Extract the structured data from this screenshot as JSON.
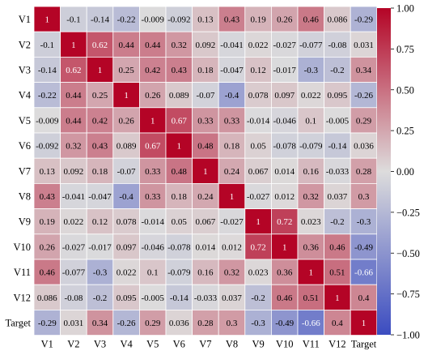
{
  "chart_data": {
    "type": "heatmap",
    "rows": [
      "V1",
      "V2",
      "V3",
      "V4",
      "V5",
      "V6",
      "V7",
      "V8",
      "V9",
      "V10",
      "V11",
      "V12",
      "Target"
    ],
    "cols": [
      "V1",
      "V2",
      "V3",
      "V4",
      "V5",
      "V6",
      "V7",
      "V8",
      "V9",
      "V10",
      "V11",
      "V12",
      "Target"
    ],
    "values": [
      [
        1,
        -0.1,
        -0.14,
        -0.22,
        -0.009,
        -0.092,
        0.13,
        0.43,
        0.19,
        0.26,
        0.46,
        0.086,
        -0.29
      ],
      [
        -0.1,
        1,
        0.62,
        0.44,
        0.44,
        0.32,
        0.092,
        -0.041,
        0.022,
        -0.027,
        -0.077,
        -0.08,
        0.031
      ],
      [
        -0.14,
        0.62,
        1,
        0.25,
        0.42,
        0.43,
        0.18,
        -0.047,
        0.12,
        -0.017,
        -0.3,
        -0.2,
        0.34
      ],
      [
        -0.22,
        0.44,
        0.25,
        1,
        0.26,
        0.089,
        -0.07,
        -0.4,
        0.078,
        0.097,
        0.022,
        0.095,
        -0.26
      ],
      [
        -0.009,
        0.44,
        0.42,
        0.26,
        1,
        0.67,
        0.33,
        0.33,
        -0.014,
        -0.046,
        0.1,
        -0.005,
        0.29
      ],
      [
        -0.092,
        0.32,
        0.43,
        0.089,
        0.67,
        1,
        0.48,
        0.18,
        0.05,
        -0.078,
        -0.079,
        -0.14,
        0.036
      ],
      [
        0.13,
        0.092,
        0.18,
        -0.07,
        0.33,
        0.48,
        1,
        0.24,
        0.067,
        0.014,
        0.16,
        -0.033,
        0.28
      ],
      [
        0.43,
        -0.041,
        -0.047,
        -0.4,
        0.33,
        0.18,
        0.24,
        1,
        -0.027,
        0.012,
        0.32,
        0.037,
        0.3
      ],
      [
        0.19,
        0.022,
        0.12,
        0.078,
        -0.014,
        0.05,
        0.067,
        -0.027,
        1,
        0.72,
        0.023,
        -0.2,
        -0.3
      ],
      [
        0.26,
        -0.027,
        -0.017,
        0.097,
        -0.046,
        -0.078,
        0.014,
        0.012,
        0.72,
        1,
        0.36,
        0.46,
        -0.49
      ],
      [
        0.46,
        -0.077,
        -0.3,
        0.022,
        0.1,
        -0.079,
        0.16,
        0.32,
        0.023,
        0.36,
        1,
        0.51,
        -0.66
      ],
      [
        0.086,
        -0.08,
        -0.2,
        0.095,
        -0.005,
        -0.14,
        -0.033,
        0.037,
        -0.2,
        0.46,
        0.51,
        1,
        0.4
      ],
      [
        -0.29,
        0.031,
        0.34,
        -0.26,
        0.29,
        0.036,
        0.28,
        0.3,
        -0.3,
        -0.49,
        -0.66,
        0.4,
        1
      ]
    ],
    "labels": [
      [
        "1",
        "-0.1",
        "-0.14",
        "-0.22",
        "-0.009",
        "-0.092",
        "0.13",
        "0.43",
        "0.19",
        "0.26",
        "0.46",
        "0.086",
        "-0.29"
      ],
      [
        "-0.1",
        "1",
        "0.62",
        "0.44",
        "0.44",
        "0.32",
        "0.092",
        "-0.041",
        "0.022",
        "-0.027",
        "-0.077",
        "-0.08",
        "0.031"
      ],
      [
        "-0.14",
        "0.62",
        "1",
        "0.25",
        "0.42",
        "0.43",
        "0.18",
        "-0.047",
        "0.12",
        "-0.017",
        "-0.3",
        "-0.2",
        "0.34"
      ],
      [
        "-0.22",
        "0.44",
        "0.25",
        "1",
        "0.26",
        "0.089",
        "-0.07",
        "-0.4",
        "0.078",
        "0.097",
        "0.022",
        "0.095",
        "-0.26"
      ],
      [
        "-0.009",
        "0.44",
        "0.42",
        "0.26",
        "1",
        "0.67",
        "0.33",
        "0.33",
        "-0.014",
        "-0.046",
        "0.1",
        "-0.005",
        "0.29"
      ],
      [
        "-0.092",
        "0.32",
        "0.43",
        "0.089",
        "0.67",
        "1",
        "0.48",
        "0.18",
        "0.05",
        "-0.078",
        "-0.079",
        "-0.14",
        "0.036"
      ],
      [
        "0.13",
        "0.092",
        "0.18",
        "-0.07",
        "0.33",
        "0.48",
        "1",
        "0.24",
        "0.067",
        "0.014",
        "0.16",
        "-0.033",
        "0.28"
      ],
      [
        "0.43",
        "-0.041",
        "-0.047",
        "-0.4",
        "0.33",
        "0.18",
        "0.24",
        "1",
        "-0.027",
        "0.012",
        "0.32",
        "0.037",
        "0.3"
      ],
      [
        "0.19",
        "0.022",
        "0.12",
        "0.078",
        "-0.014",
        "0.05",
        "0.067",
        "-0.027",
        "1",
        "0.72",
        "0.023",
        "-0.2",
        "-0.3"
      ],
      [
        "0.26",
        "-0.027",
        "-0.017",
        "0.097",
        "-0.046",
        "-0.078",
        "0.014",
        "0.012",
        "0.72",
        "1",
        "0.36",
        "0.46",
        "-0.49"
      ],
      [
        "0.46",
        "-0.077",
        "-0.3",
        "0.022",
        "0.1",
        "-0.079",
        "0.16",
        "0.32",
        "0.023",
        "0.36",
        "1",
        "0.51",
        "-0.66"
      ],
      [
        "0.086",
        "-0.08",
        "-0.2",
        "0.095",
        "-0.005",
        "-0.14",
        "-0.033",
        "0.037",
        "-0.2",
        "0.46",
        "0.51",
        "1",
        "0.4"
      ],
      [
        "-0.29",
        "0.031",
        "0.34",
        "-0.26",
        "0.29",
        "0.036",
        "0.28",
        "0.3",
        "-0.3",
        "-0.49",
        "-0.66",
        "0.4",
        "1"
      ]
    ],
    "vmin": -1.0,
    "vmax": 1.0,
    "colormap": "coolwarm",
    "colorbar": {
      "ticks": [
        1.0,
        0.75,
        0.5,
        0.25,
        0.0,
        -0.25,
        -0.5,
        -0.75,
        -1.0
      ],
      "tick_labels": [
        "1.00",
        "0.75",
        "0.50",
        "0.25",
        "0.00",
        "−0.25",
        "−0.50",
        "−0.75",
        "−1.00"
      ]
    },
    "colors": {
      "low": "#3b4cc0",
      "mid": "#dddcdc",
      "high": "#b40426",
      "cell_border": "#ffffff",
      "text_dark": "#000000",
      "text_light": "#ffffff"
    },
    "title": "",
    "xlabel": "",
    "ylabel": ""
  }
}
